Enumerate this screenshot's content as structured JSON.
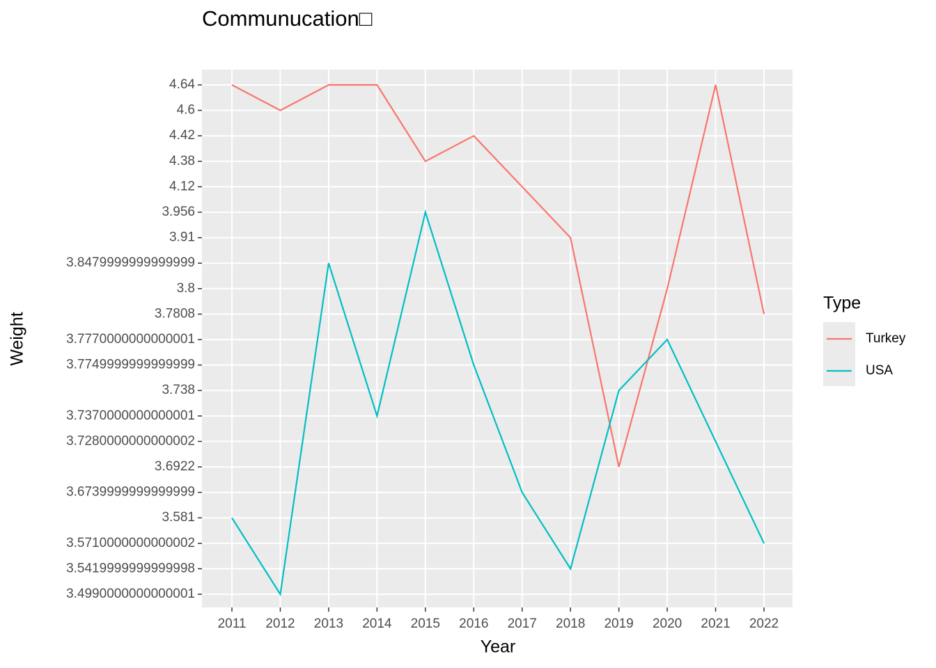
{
  "chart_data": {
    "type": "line",
    "title": "Communucation□",
    "x_label": "Year",
    "y_label": "Weight",
    "categories": [
      "2011",
      "2012",
      "2013",
      "2014",
      "2015",
      "2016",
      "2017",
      "2018",
      "2019",
      "2020",
      "2021",
      "2022"
    ],
    "y_discrete": true,
    "yticks": [
      {
        "value": 3.499,
        "label": "3.4990000000000001"
      },
      {
        "value": 3.542,
        "label": "3.5419999999999998"
      },
      {
        "value": 3.571,
        "label": "3.5710000000000002"
      },
      3.581,
      {
        "value": 3.674,
        "label": "3.6739999999999999"
      },
      3.6922,
      {
        "value": 3.728,
        "label": "3.7280000000000002"
      },
      {
        "value": 3.737,
        "label": "3.7370000000000001"
      },
      3.738,
      {
        "value": 3.775,
        "label": "3.7749999999999999"
      },
      {
        "value": 3.777,
        "label": "3.7770000000000001"
      },
      3.7808,
      3.8,
      {
        "value": 3.848,
        "label": "3.8479999999999999"
      },
      3.91,
      3.956,
      4.12,
      4.38,
      4.42,
      4.6,
      4.64
    ],
    "legend_title": "Type",
    "grid": true,
    "series": [
      {
        "name": "Turkey",
        "color": "#f8766d",
        "values": [
          4.64,
          4.6,
          4.64,
          4.64,
          4.38,
          4.42,
          4.12,
          3.91,
          3.6922,
          3.8,
          4.64,
          3.7808
        ]
      },
      {
        "name": "USA",
        "color": "#00bfc4",
        "values": [
          3.581,
          3.499,
          3.848,
          3.737,
          3.956,
          3.775,
          3.674,
          3.542,
          3.738,
          3.777,
          3.728,
          3.571
        ]
      }
    ]
  }
}
